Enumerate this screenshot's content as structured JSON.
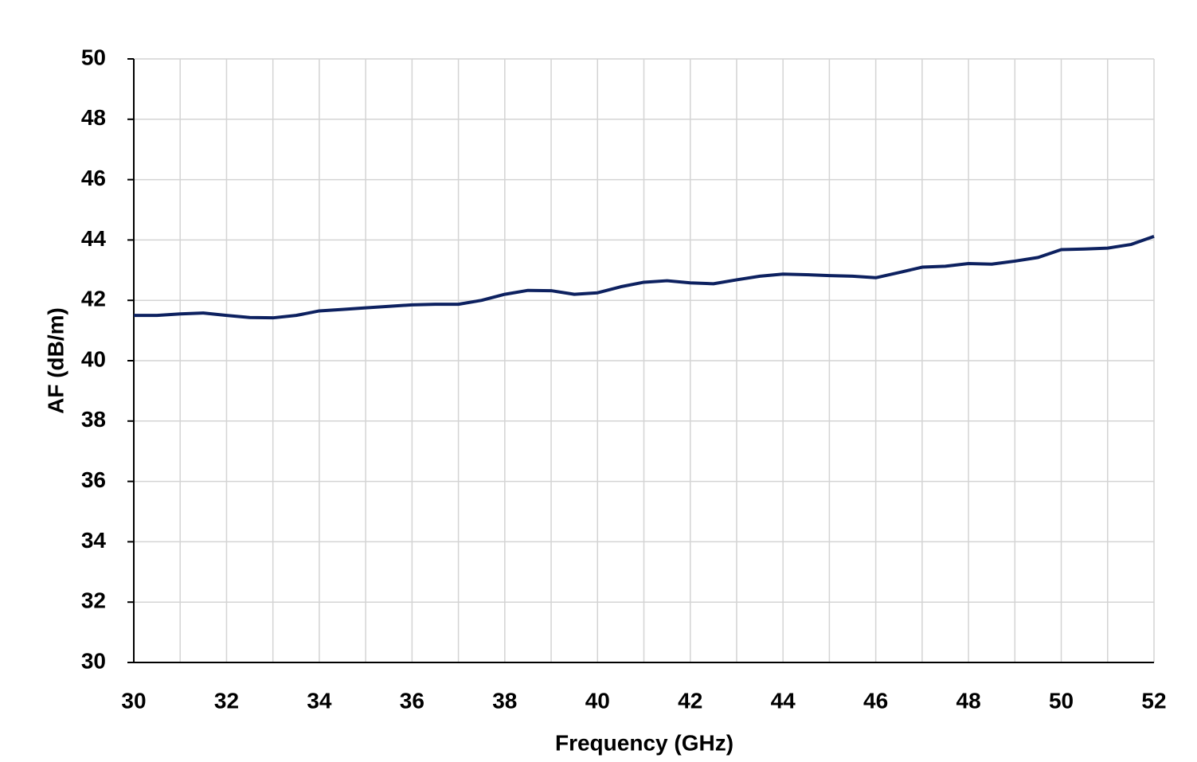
{
  "chart_data": {
    "type": "line",
    "xlabel": "Frequency  (GHz)",
    "ylabel": "AF (dB/m)",
    "x": [
      30,
      30.5,
      31,
      31.5,
      32,
      32.5,
      33,
      33.5,
      34,
      34.5,
      35,
      35.5,
      36,
      36.5,
      37,
      37.5,
      38,
      38.5,
      39,
      39.5,
      40,
      40.5,
      41,
      41.5,
      42,
      42.5,
      43,
      43.5,
      44,
      44.5,
      45,
      45.5,
      46,
      46.5,
      47,
      47.5,
      48,
      48.5,
      49,
      49.5,
      50,
      50.5,
      51,
      51.5,
      52
    ],
    "series": [
      {
        "name": "AF",
        "color": "#0d2160",
        "values": [
          41.5,
          41.5,
          41.55,
          41.58,
          41.5,
          41.43,
          41.42,
          41.5,
          41.65,
          41.7,
          41.75,
          41.8,
          41.85,
          41.87,
          41.87,
          42.0,
          42.2,
          42.33,
          42.32,
          42.2,
          42.25,
          42.45,
          42.6,
          42.65,
          42.58,
          42.55,
          42.68,
          42.8,
          42.87,
          42.85,
          42.82,
          42.8,
          42.75,
          42.92,
          43.1,
          43.13,
          43.22,
          43.2,
          43.3,
          43.42,
          43.68,
          43.7,
          43.73,
          43.85,
          44.12
        ]
      }
    ],
    "xlim": [
      30,
      52
    ],
    "xticks": [
      30,
      32,
      34,
      36,
      38,
      40,
      42,
      44,
      46,
      48,
      50,
      52
    ],
    "xminor": [
      31,
      33,
      35,
      37,
      39,
      41,
      43,
      45,
      47,
      49,
      51
    ],
    "ylim": [
      30,
      50
    ],
    "yticks": [
      30,
      32,
      34,
      36,
      38,
      40,
      42,
      44,
      46,
      48,
      50
    ],
    "grid": true
  }
}
